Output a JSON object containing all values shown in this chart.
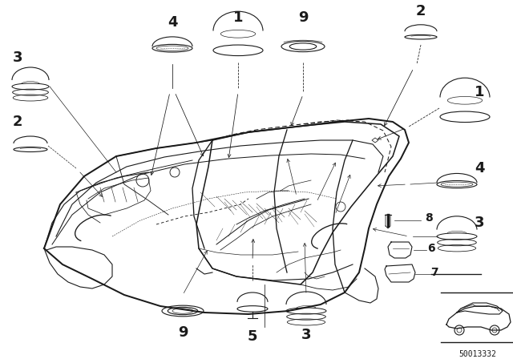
{
  "bg_color": "#ffffff",
  "fig_width": 6.4,
  "fig_height": 4.48,
  "dpi": 100,
  "ref_num": "50013332",
  "line_color": "#1a1a1a",
  "lw": 0.8
}
